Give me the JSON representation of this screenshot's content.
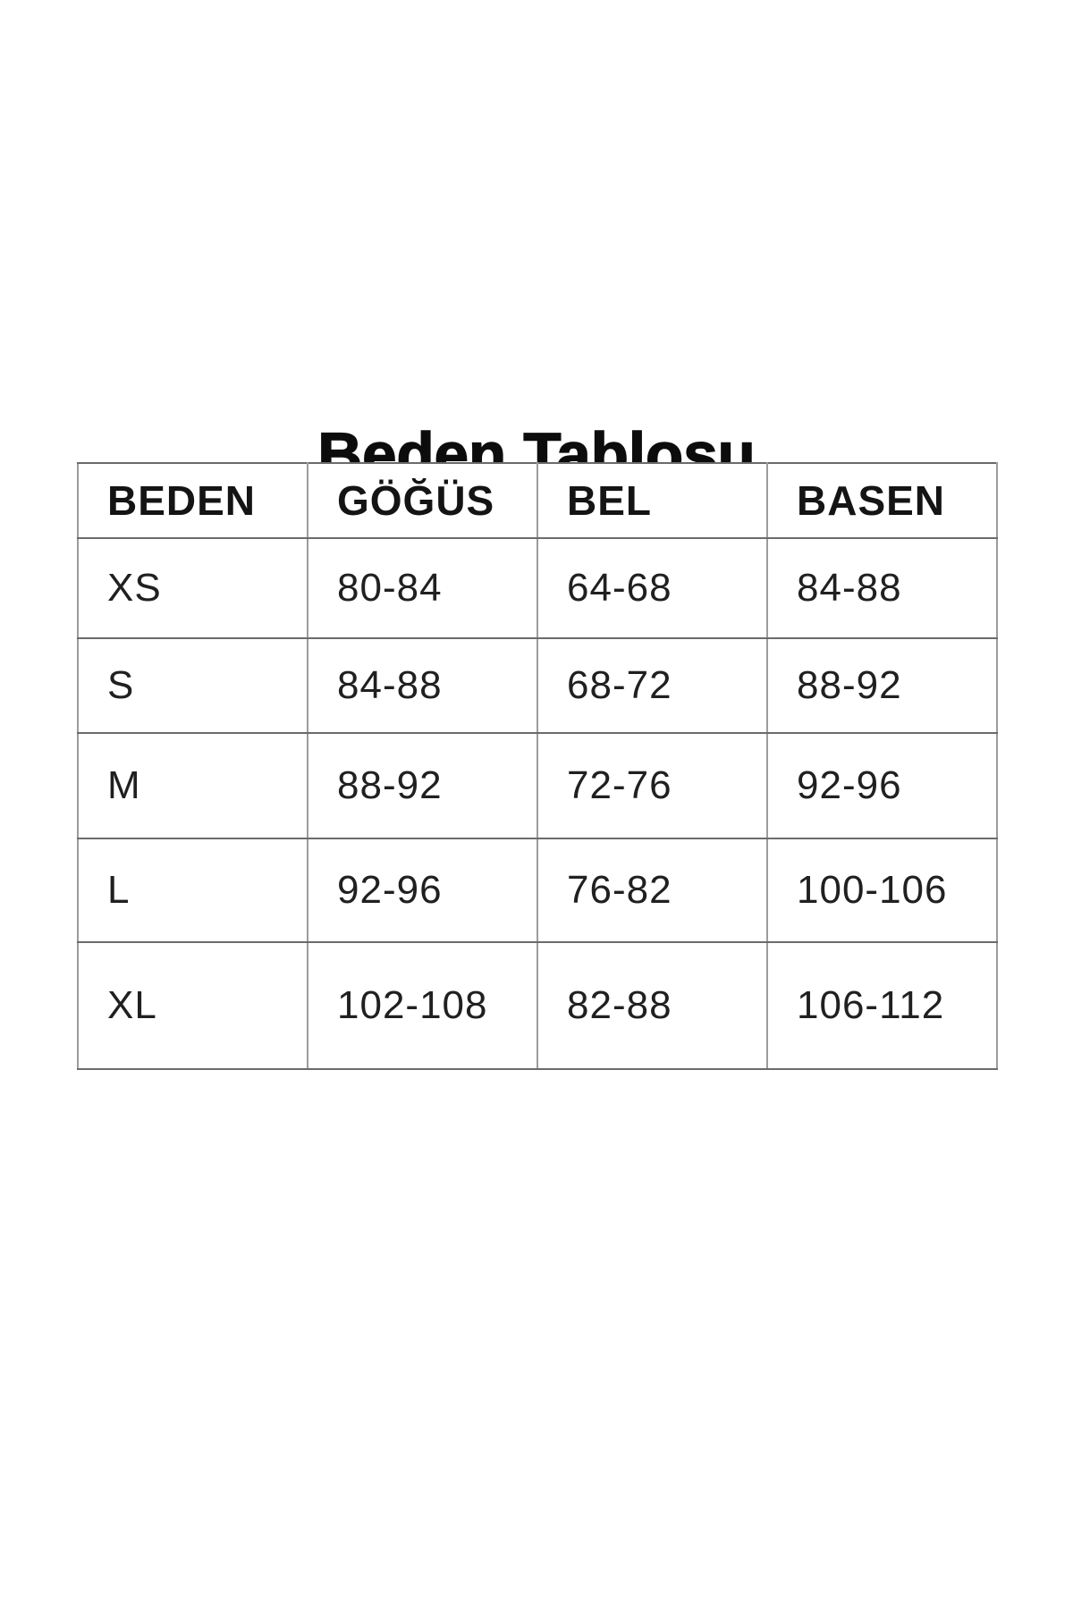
{
  "title": "Beden Tablosu",
  "table": {
    "headers": [
      "BEDEN",
      "GÖĞÜS",
      "BEL",
      "BASEN"
    ],
    "rows": [
      {
        "cells": [
          "XS",
          "80-84",
          "64-68",
          "84-88"
        ]
      },
      {
        "cells": [
          "S",
          "84-88",
          "68-72",
          "88-92"
        ]
      },
      {
        "cells": [
          "M",
          "88-92",
          "72-76",
          "92-96"
        ]
      },
      {
        "cells": [
          "L",
          "92-96",
          "76-82",
          "100-106"
        ]
      },
      {
        "cells": [
          "XL",
          "102-108",
          "82-88",
          "106-112"
        ]
      }
    ]
  },
  "chart_data": {
    "type": "table",
    "title": "Beden Tablosu",
    "columns": [
      "BEDEN",
      "GÖĞÜS",
      "BEL",
      "BASEN"
    ],
    "rows": [
      [
        "XS",
        "80-84",
        "64-68",
        "84-88"
      ],
      [
        "S",
        "84-88",
        "68-72",
        "88-92"
      ],
      [
        "M",
        "88-92",
        "72-76",
        "92-96"
      ],
      [
        "L",
        "92-96",
        "76-82",
        "100-106"
      ],
      [
        "XL",
        "102-108",
        "82-88",
        "106-112"
      ]
    ]
  },
  "colors": {
    "background": "#ffffff",
    "text": "#141414",
    "border_horizontal": "#6b6b6b",
    "border_vertical": "#9c9c9c"
  }
}
